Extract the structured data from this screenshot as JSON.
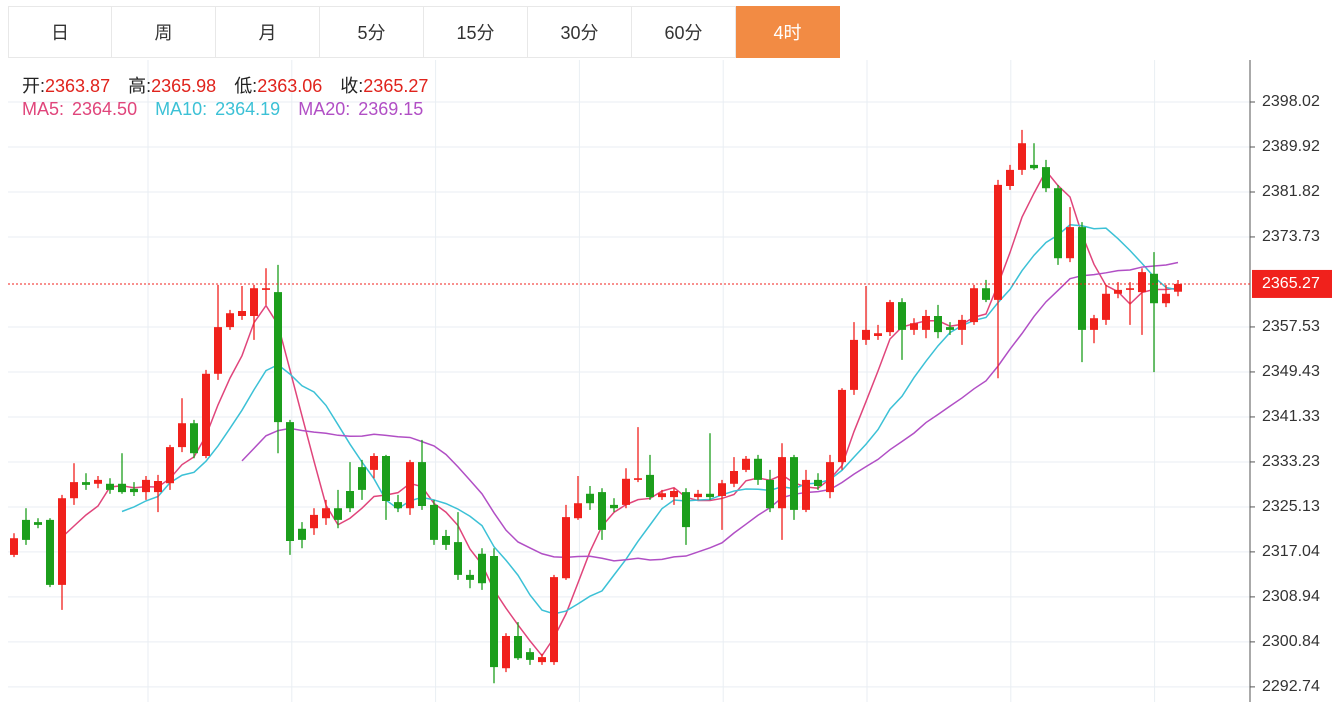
{
  "tabs": [
    "日",
    "周",
    "月",
    "5分",
    "15分",
    "30分",
    "60分",
    "4时"
  ],
  "active_tab": 7,
  "chart_data": {
    "type": "candlestick",
    "ohlc_labels": [
      "开:",
      "高:",
      "低:",
      "收:"
    ],
    "up_color": "#f0211c",
    "down_color": "#1c9e1c",
    "ma": [
      {
        "name": "MA5:",
        "value": 2364.5,
        "label": "2364.50",
        "color": "#e0457b"
      },
      {
        "name": "MA10:",
        "value": 2364.19,
        "label": "2364.19",
        "color": "#3cc1d6"
      },
      {
        "name": "MA20:",
        "value": 2369.15,
        "label": "2369.15",
        "color": "#b14fc5"
      }
    ],
    "ylim": [
      2290.02,
      2405.58
    ],
    "yticks": [
      2398.02,
      2389.92,
      2381.82,
      2373.73,
      2357.53,
      2349.43,
      2341.33,
      2333.23,
      2325.13,
      2317.04,
      2308.94,
      2300.84,
      2292.74
    ],
    "grid": true,
    "open": [
      2316.5,
      2322.8,
      2322.4,
      2322.8,
      2311.1,
      2326.7,
      2329.6,
      2329.3,
      2329.3,
      2329.3,
      2328.4,
      2327.8,
      2327.8,
      2329.4,
      2335.9,
      2340.2,
      2334.3,
      2349.1,
      2357.5,
      2359.5,
      2359.5,
      2364.2,
      2363.8,
      2340.4,
      2321.2,
      2321.3,
      2323.1,
      2324.9,
      2328.0,
      2332.3,
      2331.8,
      2334.3,
      2326.0,
      2324.9,
      2333.2,
      2325.5,
      2319.9,
      2318.8,
      2312.9,
      2316.7,
      2316.3,
      2296.1,
      2301.9,
      2299.0,
      2297.2,
      2297.2,
      2312.3,
      2323.1,
      2327.5,
      2327.8,
      2325.5,
      2325.5,
      2330.0,
      2330.9,
      2326.9,
      2326.9,
      2327.8,
      2326.9,
      2327.5,
      2327.1,
      2329.3,
      2331.8,
      2333.8,
      2330.0,
      2324.9,
      2334.1,
      2324.6,
      2330.0,
      2327.8,
      2333.2,
      2346.2,
      2355.2,
      2355.9,
      2356.6,
      2362.0,
      2357.0,
      2357.0,
      2359.5,
      2357.5,
      2357.0,
      2358.4,
      2364.5,
      2362.4,
      2382.9,
      2385.8,
      2386.7,
      2386.3,
      2382.5,
      2369.9,
      2375.5,
      2357.0,
      2358.8,
      2363.5,
      2364.2,
      2363.8,
      2367.1,
      2361.8,
      2363.87
    ],
    "high": [
      2320.4,
      2324.9,
      2323.1,
      2323.1,
      2327.3,
      2333.0,
      2331.2,
      2330.7,
      2330.3,
      2334.8,
      2329.6,
      2330.7,
      2330.9,
      2336.3,
      2344.7,
      2340.8,
      2349.8,
      2365.1,
      2360.6,
      2364.9,
      2365.1,
      2368.1,
      2368.7,
      2340.8,
      2322.4,
      2324.9,
      2326.4,
      2328.2,
      2333.2,
      2333.6,
      2334.8,
      2334.5,
      2327.3,
      2333.6,
      2337.2,
      2326.4,
      2321.0,
      2324.2,
      2313.8,
      2317.7,
      2317.7,
      2302.4,
      2304.4,
      2299.7,
      2298.7,
      2312.9,
      2325.5,
      2330.7,
      2328.9,
      2328.5,
      2326.7,
      2332.1,
      2339.5,
      2334.5,
      2328.2,
      2328.5,
      2328.5,
      2328.2,
      2338.4,
      2330.0,
      2334.1,
      2334.3,
      2334.5,
      2331.8,
      2336.6,
      2334.5,
      2331.8,
      2331.2,
      2334.5,
      2346.5,
      2358.4,
      2364.9,
      2357.9,
      2362.4,
      2362.7,
      2359.1,
      2360.6,
      2361.5,
      2358.4,
      2359.7,
      2365.1,
      2366.0,
      2384.0,
      2386.7,
      2393.0,
      2390.6,
      2387.6,
      2383.1,
      2379.1,
      2376.4,
      2359.7,
      2365.1,
      2365.6,
      2365.6,
      2368.1,
      2371.0,
      2365.1,
      2365.98
    ],
    "low": [
      2316.1,
      2318.3,
      2321.3,
      2310.7,
      2306.6,
      2325.5,
      2328.2,
      2328.5,
      2327.5,
      2327.5,
      2327.1,
      2326.4,
      2324.2,
      2328.2,
      2335.0,
      2333.9,
      2333.9,
      2348.0,
      2357.0,
      2358.8,
      2355.2,
      2361.5,
      2334.8,
      2316.5,
      2317.7,
      2320.1,
      2321.9,
      2321.3,
      2324.2,
      2326.4,
      2330.3,
      2322.8,
      2324.2,
      2323.7,
      2324.6,
      2318.3,
      2317.4,
      2312.0,
      2310.5,
      2310.2,
      2293.4,
      2295.4,
      2297.6,
      2296.7,
      2296.7,
      2296.7,
      2312.0,
      2322.8,
      2324.6,
      2319.2,
      2324.2,
      2324.9,
      2329.6,
      2326.4,
      2326.4,
      2325.5,
      2318.3,
      2326.4,
      2326.4,
      2321.0,
      2328.7,
      2331.4,
      2329.1,
      2324.2,
      2319.2,
      2322.8,
      2324.2,
      2328.2,
      2326.7,
      2331.8,
      2345.3,
      2354.3,
      2355.2,
      2355.9,
      2351.6,
      2356.1,
      2355.5,
      2355.5,
      2356.1,
      2354.3,
      2357.9,
      2362.0,
      2348.3,
      2382.2,
      2384.9,
      2385.8,
      2381.8,
      2368.7,
      2369.2,
      2351.2,
      2354.6,
      2357.9,
      2362.7,
      2357.9,
      2356.1,
      2349.4,
      2361.1,
      2363.06
    ],
    "close": [
      2319.5,
      2319.2,
      2321.9,
      2311.1,
      2326.7,
      2329.6,
      2329.1,
      2330.0,
      2328.2,
      2327.8,
      2327.8,
      2330.0,
      2329.8,
      2335.9,
      2340.2,
      2334.8,
      2349.1,
      2357.5,
      2360.0,
      2360.4,
      2364.5,
      2364.5,
      2340.4,
      2319.0,
      2319.2,
      2323.7,
      2324.9,
      2322.8,
      2324.9,
      2328.2,
      2334.3,
      2326.2,
      2324.9,
      2333.2,
      2325.3,
      2319.2,
      2318.3,
      2312.9,
      2312.0,
      2311.4,
      2296.3,
      2301.9,
      2297.9,
      2297.6,
      2298.1,
      2312.5,
      2323.3,
      2325.8,
      2325.8,
      2321.0,
      2324.9,
      2330.2,
      2330.3,
      2326.9,
      2327.6,
      2328.0,
      2321.5,
      2327.5,
      2326.9,
      2329.4,
      2331.6,
      2333.8,
      2330.0,
      2324.9,
      2334.1,
      2324.6,
      2330.0,
      2328.9,
      2333.2,
      2346.2,
      2355.2,
      2357.0,
      2356.4,
      2362.0,
      2357.0,
      2358.2,
      2359.5,
      2356.6,
      2357.0,
      2358.8,
      2364.5,
      2362.4,
      2383.1,
      2385.8,
      2390.6,
      2386.1,
      2382.5,
      2369.9,
      2375.5,
      2357.0,
      2359.1,
      2363.5,
      2364.2,
      2364.5,
      2367.4,
      2361.8,
      2363.5,
      2365.27
    ]
  }
}
